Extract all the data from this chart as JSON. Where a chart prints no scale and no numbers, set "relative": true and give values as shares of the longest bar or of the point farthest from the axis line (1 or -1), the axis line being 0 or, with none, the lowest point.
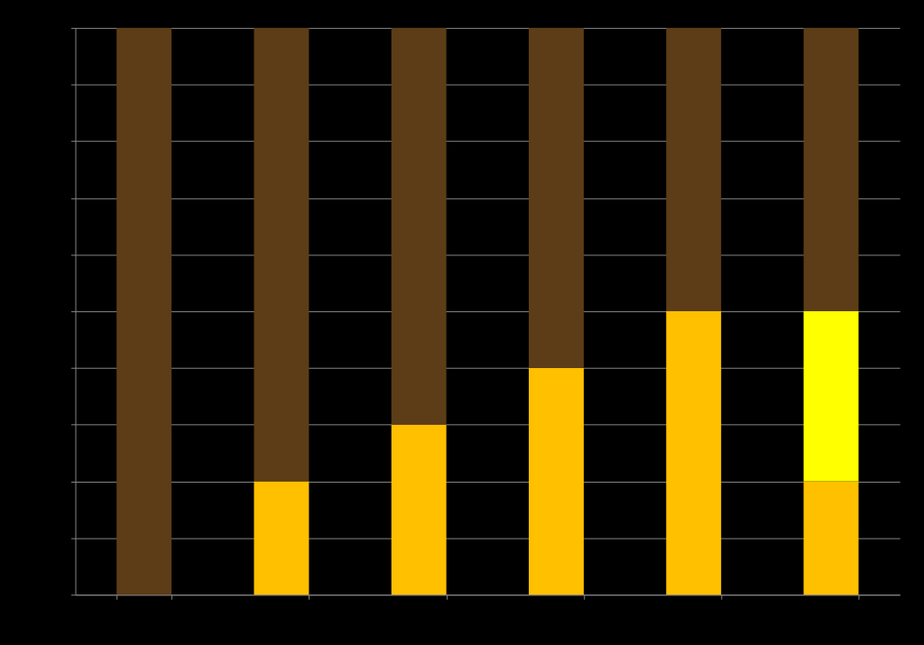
{
  "chart_data": {
    "type": "bar",
    "stacked": true,
    "relative": true,
    "grid": "y",
    "legend": false,
    "categories": [
      null,
      null,
      null,
      null,
      null,
      null
    ],
    "series": [
      {
        "color": "#ffc000",
        "values": [
          0,
          0.2,
          0.3,
          0.4,
          0.5,
          0.2
        ]
      },
      {
        "color": "#ffff00",
        "values": [
          0,
          0,
          0,
          0,
          0,
          0.3
        ]
      },
      {
        "color": "#5c3d17",
        "values": [
          1,
          0.8,
          0.7,
          0.6,
          0.5,
          0.5
        ]
      }
    ]
  }
}
